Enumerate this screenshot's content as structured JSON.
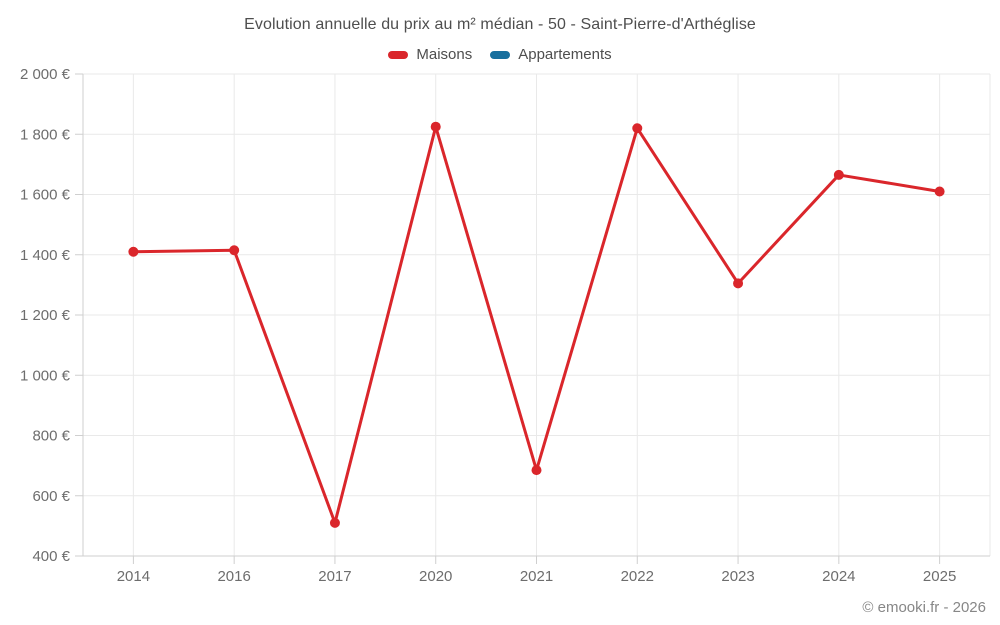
{
  "watermark": "© emooki.fr - 2026",
  "chart_data": {
    "type": "line",
    "title": "Evolution annuelle du prix au m² médian - 50 - Saint-Pierre-d'Arthéglise",
    "categories": [
      "2014",
      "2016",
      "2017",
      "2020",
      "2021",
      "2022",
      "2023",
      "2024",
      "2025"
    ],
    "series": [
      {
        "name": "Maisons",
        "color": "#da262b",
        "values": [
          1410,
          1415,
          510,
          1825,
          685,
          1820,
          1305,
          1665,
          1610
        ]
      },
      {
        "name": "Appartements",
        "color": "#176f9e",
        "values": []
      }
    ],
    "xlabel": "",
    "ylabel": "",
    "ylim": [
      400,
      2000
    ],
    "ytick_step": 200,
    "ytick_suffix": " €",
    "grid": true,
    "legend_position": "top",
    "colors": {
      "grid_line": "#e9e9e9",
      "axis_line": "#cfcfcf",
      "tick_text": "#6d6d6d"
    }
  }
}
